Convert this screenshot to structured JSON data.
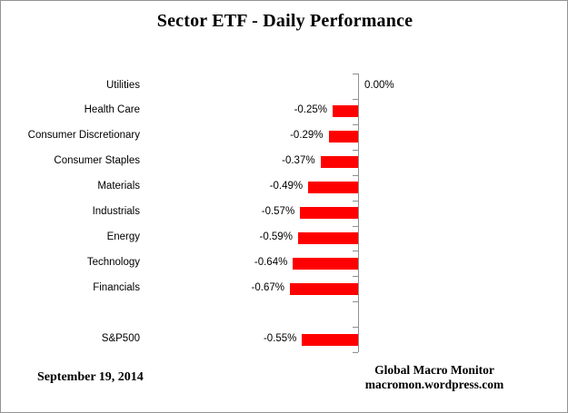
{
  "title": "Sector ETF - Daily Performance",
  "footer": {
    "date": "September 19, 2014",
    "source_line1": "Global Macro Monitor",
    "source_line2": "macromon.wordpress.com"
  },
  "colors": {
    "bar": "#ff0000",
    "axis": "#8f8f8f",
    "text": "#000000",
    "frame_border": "#949494"
  },
  "chart_data": {
    "type": "bar",
    "orientation": "horizontal",
    "title": "Sector ETF - Daily Performance",
    "xlabel": "",
    "ylabel": "",
    "value_unit": "percent_daily_change",
    "xlim": [
      -0.8,
      0.1
    ],
    "grid": false,
    "legend": false,
    "bar_color": "#ff0000",
    "categories": [
      "Utilities",
      "Health Care",
      "Consumer Discretionary",
      "Consumer Staples",
      "Materials",
      "Industrials",
      "Energy",
      "Technology",
      "Financials",
      "",
      "S&P500"
    ],
    "values": [
      0.0,
      -0.25,
      -0.29,
      -0.37,
      -0.49,
      -0.57,
      -0.59,
      -0.64,
      -0.67,
      null,
      -0.55
    ],
    "labels": [
      "0.00%",
      "-0.25%",
      "-0.29%",
      "-0.37%",
      "-0.49%",
      "-0.57%",
      "-0.59%",
      "-0.64%",
      "-0.67%",
      "",
      "-0.55%"
    ]
  }
}
